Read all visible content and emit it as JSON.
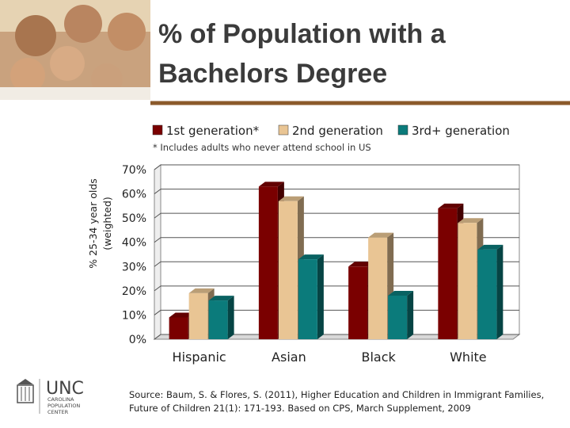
{
  "chart_data": {
    "type": "bar",
    "title": "% of Population with a Bachelors Degree",
    "note": "* Includes adults who never attend school in US",
    "ylabel": [
      "% 25-34 year olds",
      "(weighted)"
    ],
    "categories": [
      "Hispanic",
      "Asian",
      "Black",
      "White"
    ],
    "series": [
      {
        "name": "1st generation*",
        "color": "#7a0000",
        "values": [
          9,
          63,
          30,
          54
        ]
      },
      {
        "name": "2nd generation",
        "color": "#e9c594",
        "values": [
          19,
          57,
          42,
          48
        ]
      },
      {
        "name": "3rd+ generation",
        "color": "#0b7b7b",
        "values": [
          16,
          33,
          18,
          37
        ]
      }
    ],
    "ylim": [
      0,
      70
    ],
    "yticks": [
      {
        "value": 0,
        "label": "0%"
      },
      {
        "value": 10,
        "label": "10%"
      },
      {
        "value": 20,
        "label": "20%"
      },
      {
        "value": 30,
        "label": "30%"
      },
      {
        "value": 40,
        "label": "40%"
      },
      {
        "value": 50,
        "label": "50%"
      },
      {
        "value": 60,
        "label": "60%"
      },
      {
        "value": 70,
        "label": "70%"
      }
    ],
    "grid": true,
    "legend": "top"
  },
  "source": "Source: Baum, S. & Flores, S. (2011), Higher Education and Children in Immigrant Families, Future of Children 21(1): 171-193. Based on CPS, March Supplement, 2009",
  "logo": {
    "name": "UNC",
    "lines": [
      "CAROLINA",
      "POPULATION",
      "CENTER"
    ]
  }
}
